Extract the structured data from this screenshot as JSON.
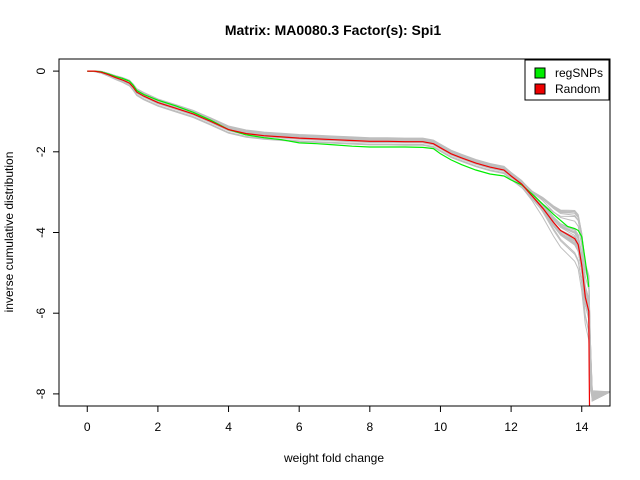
{
  "chart_data": {
    "type": "line",
    "title": "Matrix: MA0080.3 Factor(s): Spi1",
    "xlabel": "weight fold change",
    "ylabel": "inverse cumulative distribution",
    "xlim": [
      -0.8,
      14.8
    ],
    "ylim": [
      -8.3,
      0.3
    ],
    "x_ticks": [
      0,
      2,
      4,
      6,
      8,
      10,
      12,
      14
    ],
    "x_tick_labels": [
      "0",
      "2",
      "4",
      "6",
      "8",
      "10",
      "12",
      "14"
    ],
    "y_ticks": [
      0,
      -2,
      -4,
      -6,
      -8
    ],
    "y_tick_labels": [
      "0",
      "-2",
      "-4",
      "-6",
      "-8"
    ],
    "grid": false,
    "legend": {
      "position": "top-right",
      "entries": [
        {
          "label": "regSNPs",
          "color": "#00ee00"
        },
        {
          "label": "Random",
          "color": "#ee0000"
        }
      ]
    },
    "series": [
      {
        "name": "regSNPs",
        "color": "#00ee00",
        "x": [
          0.0,
          0.2,
          0.4,
          0.6,
          0.8,
          1.0,
          1.2,
          1.3,
          1.4,
          1.6,
          2.0,
          2.5,
          3.0,
          3.5,
          4.0,
          4.5,
          5.0,
          5.5,
          6.0,
          6.5,
          7.0,
          7.5,
          8.0,
          8.5,
          9.0,
          9.5,
          9.8,
          10.0,
          10.3,
          10.6,
          11.0,
          11.4,
          11.8,
          12.0,
          12.3,
          12.6,
          12.9,
          13.2,
          13.4,
          13.6,
          13.8,
          13.9,
          14.0,
          14.1,
          14.2
        ],
        "y": [
          0.0,
          0.0,
          -0.02,
          -0.07,
          -0.13,
          -0.18,
          -0.25,
          -0.35,
          -0.48,
          -0.58,
          -0.72,
          -0.86,
          -1.02,
          -1.22,
          -1.45,
          -1.58,
          -1.65,
          -1.7,
          -1.78,
          -1.8,
          -1.83,
          -1.86,
          -1.88,
          -1.88,
          -1.88,
          -1.89,
          -1.92,
          -2.05,
          -2.2,
          -2.32,
          -2.45,
          -2.55,
          -2.6,
          -2.7,
          -2.82,
          -3.05,
          -3.3,
          -3.55,
          -3.7,
          -3.85,
          -3.9,
          -3.95,
          -4.1,
          -4.7,
          -5.35
        ]
      },
      {
        "name": "Random",
        "color": "#ee0000",
        "x": [
          0.0,
          0.2,
          0.4,
          0.6,
          0.8,
          1.0,
          1.2,
          1.3,
          1.4,
          1.6,
          2.0,
          2.5,
          3.0,
          3.5,
          4.0,
          4.5,
          5.0,
          5.5,
          6.0,
          6.5,
          7.0,
          7.5,
          8.0,
          8.5,
          9.0,
          9.5,
          9.8,
          10.0,
          10.3,
          10.6,
          11.0,
          11.4,
          11.8,
          12.0,
          12.3,
          12.6,
          12.9,
          13.2,
          13.4,
          13.6,
          13.8,
          13.9,
          14.0,
          14.1,
          14.2,
          14.21,
          14.22
        ],
        "y": [
          0.0,
          0.0,
          -0.03,
          -0.09,
          -0.16,
          -0.22,
          -0.3,
          -0.4,
          -0.52,
          -0.62,
          -0.78,
          -0.92,
          -1.06,
          -1.25,
          -1.45,
          -1.55,
          -1.6,
          -1.63,
          -1.66,
          -1.68,
          -1.7,
          -1.72,
          -1.74,
          -1.74,
          -1.75,
          -1.75,
          -1.8,
          -1.9,
          -2.05,
          -2.15,
          -2.28,
          -2.38,
          -2.45,
          -2.6,
          -2.8,
          -3.1,
          -3.4,
          -3.75,
          -3.95,
          -4.05,
          -4.15,
          -4.3,
          -4.8,
          -5.6,
          -5.95,
          -7.5,
          -8.3
        ]
      }
    ]
  }
}
